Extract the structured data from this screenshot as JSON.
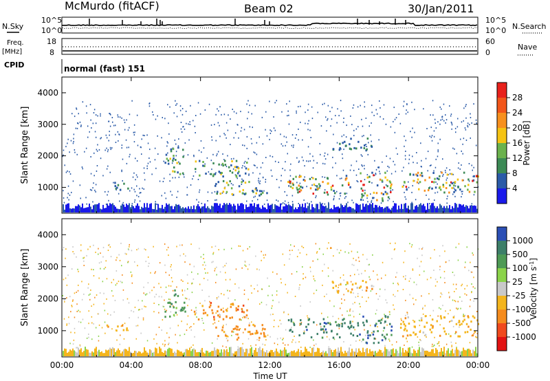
{
  "header": {
    "station": "McMurdo (fitACF)",
    "beam": "Beam 02",
    "date": "30/Jan/2011"
  },
  "panels": {
    "nsky_label": "N.Sky",
    "nsearch_label": "N.Search",
    "freq_label_1": "Freq.",
    "freq_label_2": "[MHz]",
    "cpid_label": "CPID",
    "nave_label": "Nave",
    "cpid_value": "normal (fast) 151",
    "noise_left_ticks": [
      "10^5",
      "10^0"
    ],
    "noise_right_ticks": [
      "10^5",
      "10^0"
    ],
    "freq_left_ticks": [
      "18",
      "8"
    ],
    "freq_right_ticks": [
      "60",
      "0"
    ]
  },
  "colorbars": {
    "power": {
      "label": "Power [dB]",
      "ticks": [
        "28",
        "24",
        "20",
        "16",
        "12",
        "8",
        "4"
      ],
      "colors": [
        "#e8211c",
        "#f2561a",
        "#f7901e",
        "#f5c313",
        "#6bb24d",
        "#3c8a55",
        "#2b5ba8",
        "#1a1aea"
      ]
    },
    "velocity": {
      "label": "Velocity [m s",
      "label_sup": "-1",
      "label_end": "]",
      "ticks": [
        "1000",
        "500",
        "100",
        "25",
        "-25",
        "-100",
        "-500",
        "-1000"
      ],
      "colors": [
        "#2b4fb5",
        "#3d7f69",
        "#4e9a55",
        "#8bd34a",
        "#c9c9c9",
        "#f4b51d",
        "#f58c1e",
        "#f04a1e",
        "#e21212"
      ]
    }
  },
  "chart_data": [
    {
      "type": "heatmap",
      "title": "",
      "quantity": "Power",
      "xlabel": "",
      "ylabel": "Slant Range [km]",
      "xlim": [
        0,
        24
      ],
      "ylim": [
        180,
        4500
      ],
      "x_ticks": [
        "00:00",
        "04:00",
        "08:00",
        "12:00",
        "16:00",
        "20:00",
        "00:00"
      ],
      "y_ticks": [
        "1000",
        "2000",
        "3000",
        "4000"
      ],
      "blobs": [
        {
          "t0": 2.5,
          "t1": 3.8,
          "r0": 950,
          "r1": 1200,
          "level": "low-mid"
        },
        {
          "t0": 5.9,
          "t1": 7.1,
          "r0": 1450,
          "r1": 2300,
          "level": "mid"
        },
        {
          "t0": 7.6,
          "t1": 10.8,
          "r0": 1350,
          "r1": 1900,
          "level": "mid"
        },
        {
          "t0": 8.8,
          "t1": 11.8,
          "r0": 750,
          "r1": 1250,
          "level": "mid"
        },
        {
          "t0": 13.0,
          "t1": 16.8,
          "r0": 800,
          "r1": 1400,
          "level": "high"
        },
        {
          "t0": 17.0,
          "t1": 19.0,
          "r0": 600,
          "r1": 1500,
          "level": "high"
        },
        {
          "t0": 19.5,
          "t1": 24.0,
          "r0": 850,
          "r1": 1500,
          "level": "high"
        },
        {
          "t0": 15.5,
          "t1": 18.0,
          "r0": 2200,
          "r1": 2600,
          "level": "low"
        }
      ]
    },
    {
      "type": "heatmap",
      "title": "",
      "quantity": "Velocity",
      "xlabel": "Time UT",
      "ylabel": "Slant Range [km]",
      "xlim": [
        0,
        24
      ],
      "ylim": [
        180,
        4500
      ],
      "x_ticks": [
        "00:00",
        "04:00",
        "08:00",
        "12:00",
        "16:00",
        "20:00",
        "00:00"
      ],
      "y_ticks": [
        "1000",
        "2000",
        "3000",
        "4000"
      ],
      "blobs": [
        {
          "t0": 2.5,
          "t1": 3.8,
          "r0": 950,
          "r1": 1200,
          "vel": "-100"
        },
        {
          "t0": 5.9,
          "t1": 7.1,
          "r0": 1450,
          "r1": 2300,
          "vel": "100"
        },
        {
          "t0": 7.6,
          "t1": 10.8,
          "r0": 1350,
          "r1": 1900,
          "vel": "-500"
        },
        {
          "t0": 8.8,
          "t1": 11.8,
          "r0": 750,
          "r1": 1250,
          "vel": "-500"
        },
        {
          "t0": 13.0,
          "t1": 16.8,
          "r0": 800,
          "r1": 1400,
          "vel": "500"
        },
        {
          "t0": 17.0,
          "t1": 19.0,
          "r0": 600,
          "r1": 1500,
          "vel": "500"
        },
        {
          "t0": 19.5,
          "t1": 24.0,
          "r0": 850,
          "r1": 1500,
          "vel": "-100"
        },
        {
          "t0": 15.5,
          "t1": 18.0,
          "r0": 2200,
          "r1": 2600,
          "vel": "-100"
        }
      ]
    }
  ]
}
